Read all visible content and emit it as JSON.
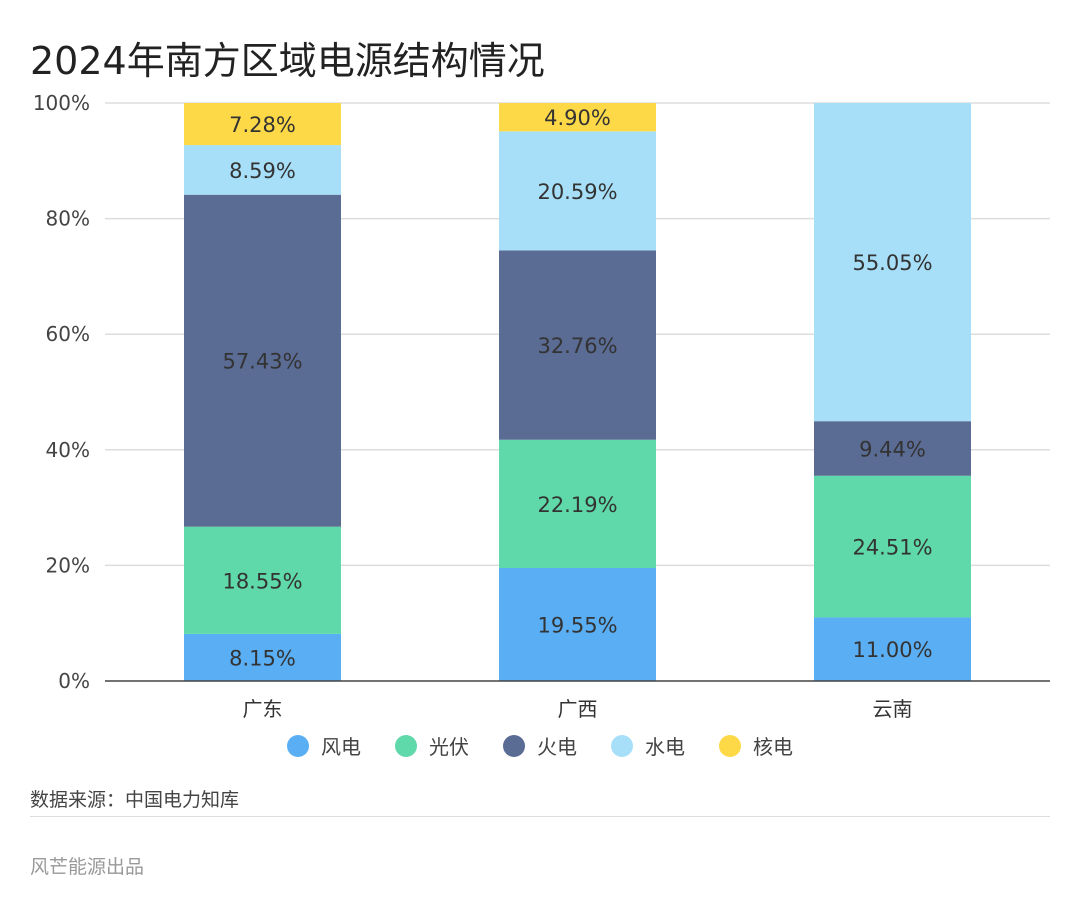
{
  "title": "2024年南方区域电源结构情况",
  "source": "数据来源：中国电力知库",
  "brand": "风芒能源出品",
  "chart_data": {
    "type": "bar",
    "stacked": true,
    "categories": [
      "广东",
      "广西",
      "云南"
    ],
    "series": [
      {
        "name": "风电",
        "color": "#5aaef4",
        "values": [
          8.15,
          19.55,
          11.0
        ]
      },
      {
        "name": "光伏",
        "color": "#5fd9a9",
        "values": [
          18.55,
          22.19,
          24.51
        ]
      },
      {
        "name": "火电",
        "color": "#5a6b94",
        "values": [
          57.43,
          32.76,
          9.44
        ]
      },
      {
        "name": "水电",
        "color": "#a7dff9",
        "values": [
          8.59,
          20.59,
          55.05
        ]
      },
      {
        "name": "核电",
        "color": "#fdd948",
        "values": [
          7.28,
          4.9,
          0
        ]
      }
    ],
    "ylim": [
      0,
      100
    ],
    "yticks": [
      "0%",
      "20%",
      "40%",
      "60%",
      "80%",
      "100%"
    ],
    "grid": true,
    "legend": "bottom"
  }
}
